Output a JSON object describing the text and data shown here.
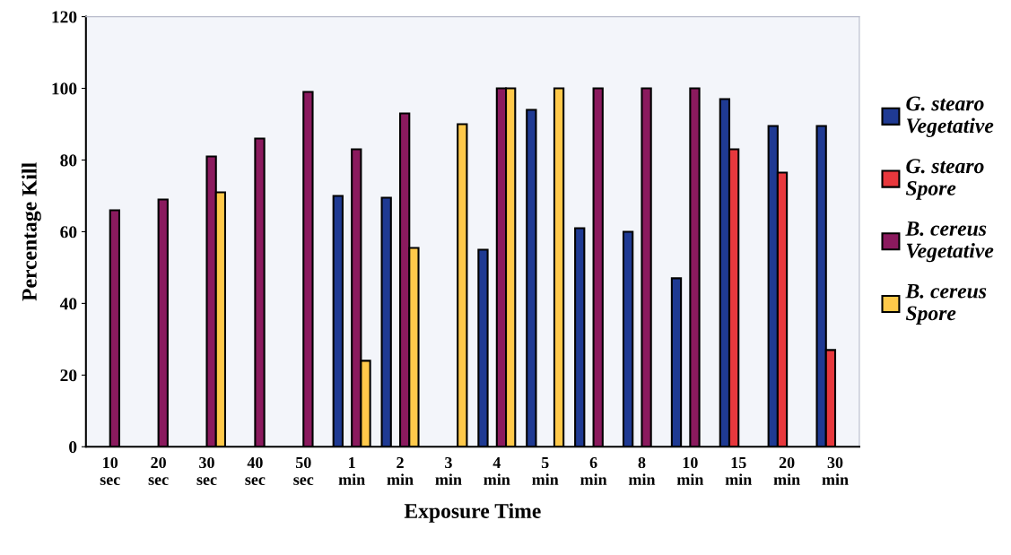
{
  "chart_data": {
    "type": "bar",
    "xlabel": "Exposure Time",
    "ylabel": "Percentage Kill",
    "categories": [
      "10\nsec",
      "20\nsec",
      "30\nsec",
      "40\nsec",
      "50\nsec",
      "1\nmin",
      "2\nmin",
      "3\nmin",
      "4\nmin",
      "5\nmin",
      "6\nmin",
      "8\nmin",
      "10\nmin",
      "15\nmin",
      "20\nmin",
      "30\nmin"
    ],
    "series": [
      {
        "name": "G. stearo\nVegetative",
        "color": "#1f3a93",
        "values": [
          null,
          null,
          null,
          null,
          null,
          70,
          69.5,
          null,
          55,
          94,
          61,
          60,
          47,
          97,
          89.5,
          89.5
        ]
      },
      {
        "name": "G. stearo\nSpore",
        "color": "#e8383d",
        "values": [
          null,
          null,
          null,
          null,
          null,
          null,
          null,
          null,
          null,
          null,
          null,
          null,
          null,
          83,
          76.5,
          27
        ]
      },
      {
        "name": "B. cereus\nVegetative",
        "color": "#8b1a5e",
        "values": [
          66,
          69,
          81,
          86,
          99,
          83,
          93,
          null,
          100,
          null,
          100,
          100,
          100,
          null,
          null,
          null
        ]
      },
      {
        "name": "B. cereus\nSpore",
        "color": "#ffc94a",
        "values": [
          null,
          null,
          71,
          null,
          null,
          24,
          55.5,
          90,
          100,
          100,
          null,
          null,
          null,
          null,
          null,
          null
        ]
      }
    ],
    "ylim": [
      0,
      120
    ],
    "yticks": [
      0,
      20,
      40,
      60,
      80,
      100,
      120
    ],
    "grid": false,
    "legend": "right"
  }
}
